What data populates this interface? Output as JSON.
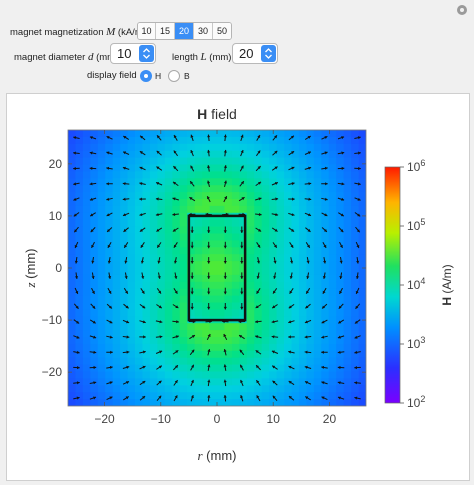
{
  "controls": {
    "magnetization": {
      "label_prefix": "magnet magnetization ",
      "label_var": "M",
      "label_suffix": " (kA/m)",
      "options": [
        "10",
        "15",
        "20",
        "30",
        "50"
      ],
      "selected": "20"
    },
    "diameter": {
      "label_prefix": "magnet diameter ",
      "label_var": "d",
      "label_suffix": " (mm)",
      "value": "10"
    },
    "length": {
      "label_prefix": "length ",
      "label_var": "L",
      "label_suffix": " (mm)",
      "value": "20"
    },
    "display_field": {
      "label": "display field",
      "options": [
        "H",
        "B"
      ],
      "selected": "H"
    }
  },
  "plot": {
    "title_bold": "H",
    "title_rest": " field",
    "x_axis": {
      "var": "r",
      "unit": " (mm)",
      "ticks": [
        "−20",
        "−10",
        "0",
        "10",
        "20"
      ]
    },
    "y_axis": {
      "var": "z",
      "unit": " (mm)",
      "ticks": [
        "20",
        "10",
        "0",
        "−10",
        "−20"
      ]
    },
    "colorbar": {
      "label_bold": "H",
      "label_rest": " (A/m)",
      "ticks": [
        {
          "base": "10",
          "exp": "6"
        },
        {
          "base": "10",
          "exp": "5"
        },
        {
          "base": "10",
          "exp": "4"
        },
        {
          "base": "10",
          "exp": "3"
        },
        {
          "base": "10",
          "exp": "2"
        }
      ],
      "scale": "log",
      "range": [
        100,
        1000000
      ]
    },
    "magnet_outline": {
      "r": [
        -5,
        5
      ],
      "z": [
        -10,
        10
      ]
    }
  },
  "colors": {
    "accent": "#3a8ef5",
    "background": "#f0f0f0",
    "colormap": [
      "#7a00ff",
      "#3f1aff",
      "#1e40ff",
      "#0094ff",
      "#00d0e0",
      "#00e08a",
      "#5aec2a",
      "#c8f000",
      "#ffd400",
      "#ff8200",
      "#ff2000"
    ]
  }
}
